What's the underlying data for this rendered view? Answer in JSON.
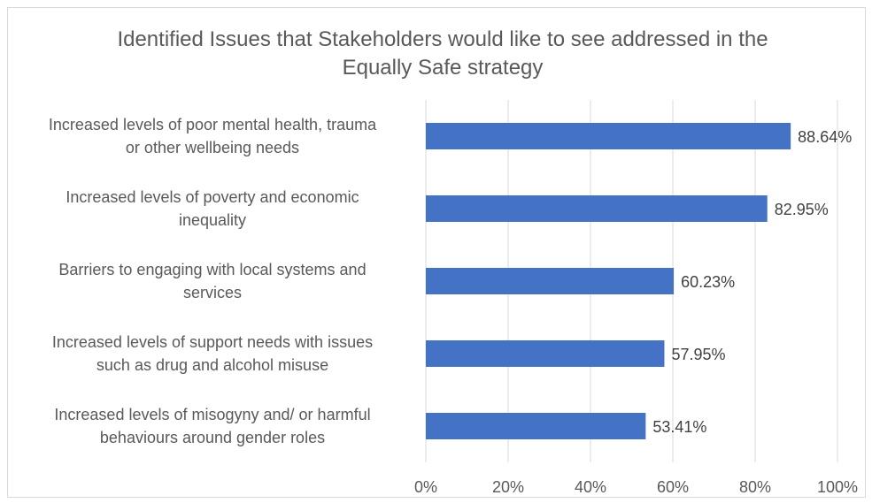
{
  "chart_data": {
    "type": "bar",
    "orientation": "horizontal",
    "title": "Identified Issues that Stakeholders would like to see addressed in the Equally Safe strategy",
    "title_lines": [
      "Identified Issues that Stakeholders would like to see addressed in the",
      "Equally Safe strategy"
    ],
    "categories": [
      "Increased levels of poor mental health, trauma or other wellbeing needs",
      "Increased levels of poverty and economic inequality",
      "Barriers to engaging with local systems and services",
      "Increased levels of support needs with issues such as drug and alcohol misuse",
      "Increased levels of misogyny and/ or harmful behaviours around gender roles"
    ],
    "category_lines": [
      [
        "Increased levels of poor mental health, trauma",
        "or other wellbeing needs"
      ],
      [
        "Increased levels of poverty and economic",
        "inequality"
      ],
      [
        "Barriers to engaging with local systems and",
        "services"
      ],
      [
        "Increased levels of support needs with issues",
        "such as drug and alcohol misuse"
      ],
      [
        "Increased levels of misogyny and/ or harmful",
        "behaviours around gender roles"
      ]
    ],
    "values": [
      88.64,
      82.95,
      60.23,
      57.95,
      53.41
    ],
    "data_labels": [
      "88.64%",
      "82.95%",
      "60.23%",
      "57.95%",
      "53.41%"
    ],
    "xlim": [
      0,
      100
    ],
    "x_ticks": [
      0,
      20,
      40,
      60,
      80,
      100
    ],
    "x_tick_labels": [
      "0%",
      "20%",
      "40%",
      "60%",
      "80%",
      "100%"
    ],
    "xlabel": "",
    "ylabel": "",
    "grid": "vertical",
    "legend": "none",
    "bar_color": "#4472c4",
    "gridline_color": "#d9d9d9",
    "text_color": "#595959"
  }
}
